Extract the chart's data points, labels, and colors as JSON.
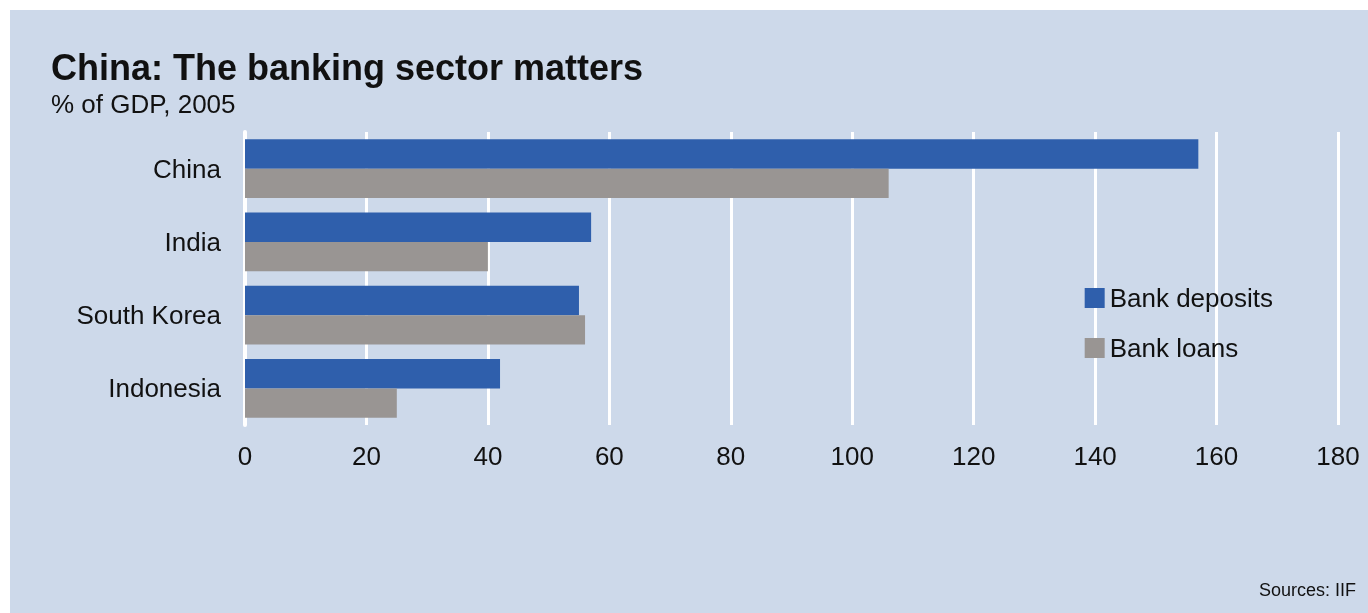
{
  "chart_data": {
    "type": "bar",
    "orientation": "horizontal",
    "title": "China: The banking sector matters",
    "subtitle": "% of GDP, 2005",
    "categories": [
      "China",
      "India",
      "South Korea",
      "Indonesia"
    ],
    "series": [
      {
        "name": "Bank deposits",
        "color": "#2f5fac",
        "values": [
          157,
          57,
          55,
          42
        ]
      },
      {
        "name": "Bank loans",
        "color": "#999593",
        "values": [
          106,
          40,
          56,
          25
        ]
      }
    ],
    "xlim": [
      0,
      180
    ],
    "xticks": [
      0,
      20,
      40,
      60,
      80,
      100,
      120,
      140,
      160,
      180
    ],
    "grid": "x",
    "legend": "right",
    "annotations": [
      "Sources: IIF"
    ]
  }
}
